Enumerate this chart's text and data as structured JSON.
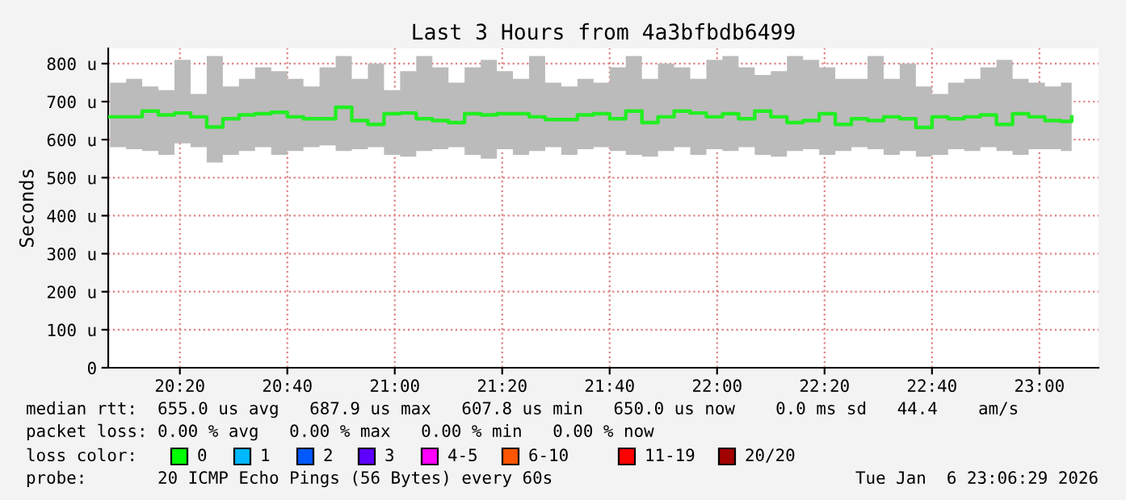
{
  "chart_data": {
    "type": "step",
    "title": "Last 3 Hours from 4a3bfbdb6499",
    "ylabel": "Seconds",
    "x": [
      "2026-01-06T20:07",
      "2026-01-06T20:10",
      "2026-01-06T20:13",
      "2026-01-06T20:16",
      "2026-01-06T20:19",
      "2026-01-06T20:22",
      "2026-01-06T20:25",
      "2026-01-06T20:28",
      "2026-01-06T20:31",
      "2026-01-06T20:34",
      "2026-01-06T20:37",
      "2026-01-06T20:40",
      "2026-01-06T20:43",
      "2026-01-06T20:46",
      "2026-01-06T20:49",
      "2026-01-06T20:52",
      "2026-01-06T20:55",
      "2026-01-06T20:58",
      "2026-01-06T21:01",
      "2026-01-06T21:04",
      "2026-01-06T21:07",
      "2026-01-06T21:10",
      "2026-01-06T21:13",
      "2026-01-06T21:16",
      "2026-01-06T21:19",
      "2026-01-06T21:22",
      "2026-01-06T21:25",
      "2026-01-06T21:28",
      "2026-01-06T21:31",
      "2026-01-06T21:34",
      "2026-01-06T21:37",
      "2026-01-06T21:40",
      "2026-01-06T21:43",
      "2026-01-06T21:46",
      "2026-01-06T21:49",
      "2026-01-06T21:52",
      "2026-01-06T21:55",
      "2026-01-06T21:58",
      "2026-01-06T22:01",
      "2026-01-06T22:04",
      "2026-01-06T22:07",
      "2026-01-06T22:10",
      "2026-01-06T22:13",
      "2026-01-06T22:16",
      "2026-01-06T22:19",
      "2026-01-06T22:22",
      "2026-01-06T22:25",
      "2026-01-06T22:28",
      "2026-01-06T22:31",
      "2026-01-06T22:34",
      "2026-01-06T22:37",
      "2026-01-06T22:40",
      "2026-01-06T22:43",
      "2026-01-06T22:46",
      "2026-01-06T22:49",
      "2026-01-06T22:52",
      "2026-01-06T22:55",
      "2026-01-06T22:58",
      "2026-01-06T23:01",
      "2026-01-06T23:04",
      "2026-01-06T23:06"
    ],
    "series": [
      {
        "color": "#22ee22",
        "values": [
          660,
          660,
          675,
          665,
          670,
          660,
          633,
          655,
          665,
          668,
          672,
          660,
          655,
          655,
          685,
          650,
          640,
          668,
          670,
          655,
          650,
          645,
          668,
          665,
          668,
          668,
          660,
          653,
          653,
          665,
          668,
          655,
          675,
          645,
          660,
          675,
          670,
          660,
          668,
          655,
          675,
          660,
          645,
          650,
          668,
          640,
          655,
          650,
          660,
          655,
          632,
          660,
          655,
          660,
          665,
          640,
          668,
          660,
          650,
          648,
          660
        ],
        "lower": [
          580,
          575,
          570,
          560,
          590,
          580,
          540,
          560,
          570,
          580,
          560,
          570,
          580,
          585,
          570,
          575,
          580,
          560,
          555,
          570,
          575,
          580,
          560,
          550,
          575,
          560,
          570,
          580,
          560,
          575,
          580,
          570,
          560,
          555,
          570,
          580,
          560,
          575,
          570,
          580,
          560,
          555,
          570,
          575,
          560,
          570,
          580,
          575,
          560,
          570,
          555,
          560,
          575,
          570,
          580,
          570,
          560,
          575,
          575,
          570,
          580
        ],
        "upper": [
          750,
          760,
          740,
          730,
          810,
          720,
          820,
          740,
          760,
          790,
          780,
          760,
          740,
          790,
          820,
          760,
          800,
          730,
          780,
          820,
          790,
          750,
          790,
          810,
          780,
          760,
          820,
          750,
          740,
          760,
          750,
          790,
          820,
          760,
          800,
          790,
          760,
          810,
          820,
          790,
          770,
          780,
          820,
          810,
          790,
          760,
          760,
          820,
          760,
          800,
          740,
          720,
          750,
          760,
          790,
          810,
          760,
          750,
          740,
          750,
          740
        ]
      }
    ],
    "xlim": [
      "2026-01-06T20:06:40",
      "2026-01-06T23:11"
    ],
    "xticks": [
      {
        "value": "2026-01-06T20:20",
        "label": "20:20"
      },
      {
        "value": "2026-01-06T20:40",
        "label": "20:40"
      },
      {
        "value": "2026-01-06T21:00",
        "label": "21:00"
      },
      {
        "value": "2026-01-06T21:20",
        "label": "21:20"
      },
      {
        "value": "2026-01-06T21:40",
        "label": "21:40"
      },
      {
        "value": "2026-01-06T22:00",
        "label": "22:00"
      },
      {
        "value": "2026-01-06T22:20",
        "label": "22:20"
      },
      {
        "value": "2026-01-06T22:40",
        "label": "22:40"
      },
      {
        "value": "2026-01-06T23:00",
        "label": "23:00"
      }
    ],
    "ylim": [
      0,
      840
    ],
    "yticks": [
      0,
      {
        "value": 100,
        "label": "100 u"
      },
      {
        "value": 200,
        "label": "200 u"
      },
      {
        "value": 300,
        "label": "300 u"
      },
      {
        "value": 400,
        "label": "400 u"
      },
      {
        "value": 500,
        "label": "500 u"
      },
      {
        "value": 600,
        "label": "600 u"
      },
      {
        "value": 700,
        "label": "700 u"
      },
      {
        "value": 800,
        "label": "800 u"
      }
    ],
    "grid": true,
    "annotations": [
      "median rtt:  655.0 us avg   687.9 us max   607.8 us min   650.0 us now    0.0 ms sd   44.4    am/s",
      "packet loss: 0.00 % avg   0.00 % max   0.00 % min   0.00 % now",
      "loss color:",
      "0",
      "1",
      "2",
      "3",
      "4-5",
      "6-10",
      "11-19",
      "20/20",
      "probe:       20 ICMP Echo Pings (56 Bytes) every 60s",
      "Tue Jan  6 23:06:29 2026"
    ]
  }
}
